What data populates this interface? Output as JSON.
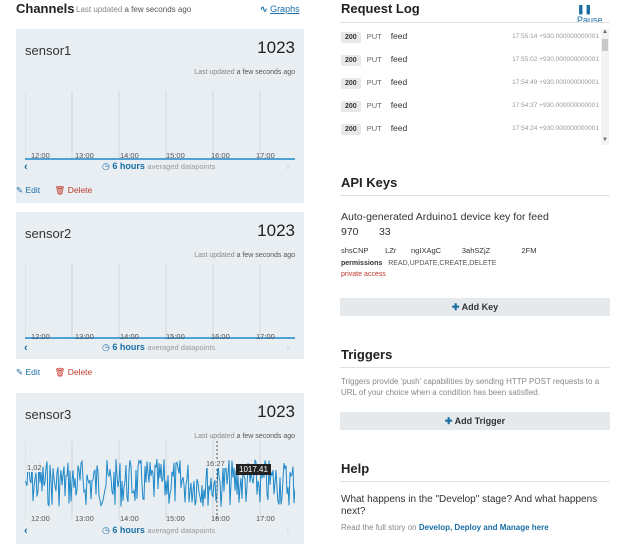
{
  "channels": {
    "title": "Channels",
    "updated_label": "Last updated",
    "updated_value": "a few seconds ago",
    "graphs_link": "Graphs",
    "sensors": [
      {
        "name": "sensor1",
        "value": "1023",
        "updated_label": "Last updated",
        "updated_value": "a few seconds ago",
        "ticks": [
          "12:00",
          "13:00",
          "14:00",
          "15:00",
          "16:00",
          "17:00"
        ],
        "duration": "6 hours",
        "avg_label": "averaged datapoints",
        "edit": "Edit",
        "delete": "Delete"
      },
      {
        "name": "sensor2",
        "value": "1023",
        "updated_label": "Last updated",
        "updated_value": "a few seconds ago",
        "ticks": [
          "12:00",
          "13:00",
          "14:00",
          "15:00",
          "16:00",
          "17:00"
        ],
        "duration": "6 hours",
        "avg_label": "averaged datapoints",
        "edit": "Edit",
        "delete": "Delete"
      },
      {
        "name": "sensor3",
        "value": "1023",
        "updated_label": "Last updated",
        "updated_value": "a few seconds ago",
        "ticks": [
          "12:00",
          "13:00",
          "14:00",
          "15:00",
          "16:00",
          "17:00"
        ],
        "duration": "6 hours",
        "avg_label": "averaged datapoints",
        "hover_time": "16:27",
        "hover_value": "1017.41",
        "y_label": "1,02"
      }
    ]
  },
  "request_log": {
    "title": "Request Log",
    "pause": "Pause",
    "rows": [
      {
        "status": "200",
        "method": "PUT",
        "feed": "feed",
        "time": "17:55:14 +930.000000000001"
      },
      {
        "status": "200",
        "method": "PUT",
        "feed": "feed",
        "time": "17:55:02 +930.000000000001"
      },
      {
        "status": "200",
        "method": "PUT",
        "feed": "feed",
        "time": "17:54:49 +930.000000000001"
      },
      {
        "status": "200",
        "method": "PUT",
        "feed": "feed",
        "time": "17:54:37 +930.000000000001"
      },
      {
        "status": "200",
        "method": "PUT",
        "feed": "feed",
        "time": "17:54:24 +930.000000000001"
      }
    ]
  },
  "api_keys": {
    "title": "API Keys",
    "description_line1": "Auto-generated Arduino1 device key for feed",
    "description_line2": "970       33",
    "key_value": "shsCNP        LZr       ngIXAgC          3ahSZjZ               2FM",
    "permissions_label": "permissions",
    "permissions_value": "READ,UPDATE,CREATE,DELETE",
    "private": "private access",
    "add_key": "Add Key"
  },
  "triggers": {
    "title": "Triggers",
    "description": "Triggers provide 'push' capabilities by sending HTTP POST requests to a URL of your choice when a condition has been satisfied.",
    "add_trigger": "Add Trigger"
  },
  "help": {
    "title": "Help",
    "question": "What happens in the \"Develop\" stage? And what happens next?",
    "story_prefix": "Read the full story on",
    "story_link": "Develop, Deploy and Manage here"
  },
  "colors": {
    "accent": "#1a6ea5",
    "chart_line": "#1e88c8",
    "card_bg": "#e9eef2",
    "delete": "#c0392b"
  }
}
